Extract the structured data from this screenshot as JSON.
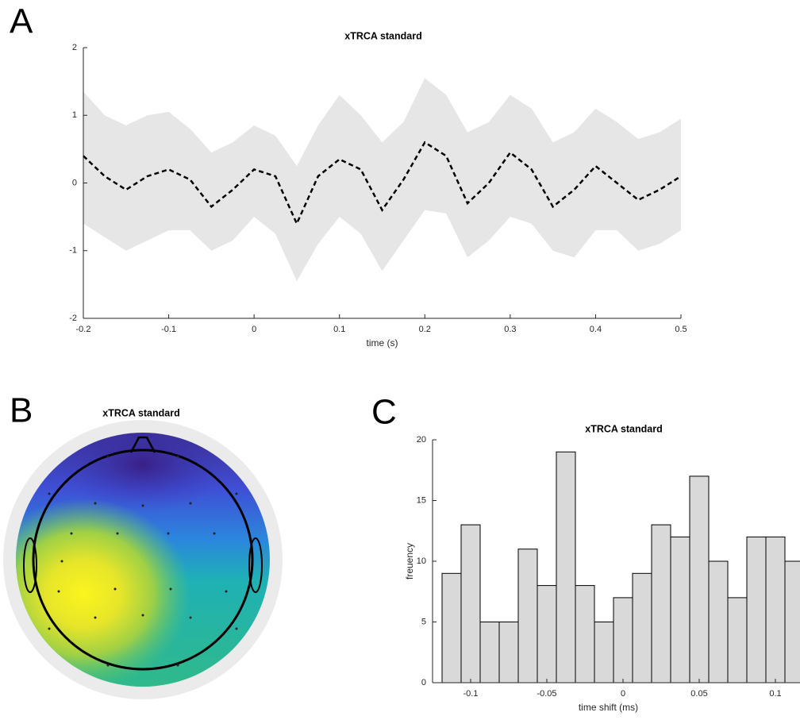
{
  "chart_data": [
    {
      "type": "line",
      "panel_label": "A",
      "title": "xTRCA standard",
      "xlabel": "time (s)",
      "x": [
        -0.2,
        -0.175,
        -0.15,
        -0.125,
        -0.1,
        -0.075,
        -0.05,
        -0.025,
        0,
        0.025,
        0.05,
        0.075,
        0.1,
        0.125,
        0.15,
        0.175,
        0.2,
        0.225,
        0.25,
        0.275,
        0.3,
        0.325,
        0.35,
        0.375,
        0.4,
        0.425,
        0.45,
        0.475,
        0.5
      ],
      "series": [
        {
          "color": "#000000",
          "band_color": "#e6e6e6",
          "values": [
            0.4,
            0.1,
            -0.1,
            0.1,
            0.2,
            0.05,
            -0.35,
            -0.1,
            0.2,
            0.1,
            -0.6,
            0.1,
            0.35,
            0.2,
            -0.4,
            0.05,
            0.6,
            0.4,
            -0.3,
            0.0,
            0.45,
            0.2,
            -0.35,
            -0.1,
            0.25,
            0.0,
            -0.25,
            -0.1,
            0.1
          ],
          "upper": [
            1.35,
            1.0,
            0.85,
            1.0,
            1.05,
            0.8,
            0.45,
            0.6,
            0.85,
            0.7,
            0.25,
            0.85,
            1.3,
            1.0,
            0.6,
            0.9,
            1.55,
            1.3,
            0.75,
            0.9,
            1.3,
            1.1,
            0.6,
            0.75,
            1.1,
            0.9,
            0.65,
            0.75,
            0.95
          ],
          "lower": [
            -0.6,
            -0.8,
            -1.0,
            -0.85,
            -0.7,
            -0.7,
            -1.0,
            -0.85,
            -0.5,
            -0.75,
            -1.45,
            -0.9,
            -0.5,
            -0.75,
            -1.3,
            -0.85,
            -0.4,
            -0.45,
            -1.1,
            -0.85,
            -0.5,
            -0.6,
            -1.0,
            -1.1,
            -0.7,
            -0.7,
            -1.0,
            -0.9,
            -0.7
          ]
        }
      ],
      "xlim": [
        -0.2,
        0.5
      ],
      "xticks": [
        -0.2,
        -0.1,
        0,
        0.1,
        0.2,
        0.3,
        0.4,
        0.5
      ],
      "ylim": [
        -2,
        2
      ],
      "yticks": [
        -2,
        -1,
        0,
        1,
        2
      ]
    },
    {
      "type": "topomap",
      "panel_label": "B",
      "title": "xTRCA standard"
    },
    {
      "type": "histogram",
      "panel_label": "C",
      "title": "xTRCA standard",
      "xlabel": "time shift (ms)",
      "ylabel": "freuency",
      "color": "#d9d9d9",
      "bins": [
        -0.11875,
        -0.10625,
        -0.09375,
        -0.08125,
        -0.06875,
        -0.05625,
        -0.04375,
        -0.03125,
        -0.01875,
        -0.00625,
        0.00625,
        0.01875,
        0.03125,
        0.04375,
        0.05625,
        0.06875,
        0.08125,
        0.09375,
        0.10625,
        0.11875
      ],
      "values": [
        9,
        13,
        5,
        5,
        11,
        8,
        19,
        8,
        5,
        7,
        9,
        13,
        12,
        17,
        10,
        7,
        12,
        12,
        10
      ],
      "xlim": [
        -0.125,
        0.125
      ],
      "xticks": [
        -0.1,
        -0.05,
        0,
        0.05,
        0.1
      ],
      "ylim": [
        0,
        20
      ],
      "yticks": [
        0,
        5,
        10,
        15,
        20
      ]
    }
  ]
}
